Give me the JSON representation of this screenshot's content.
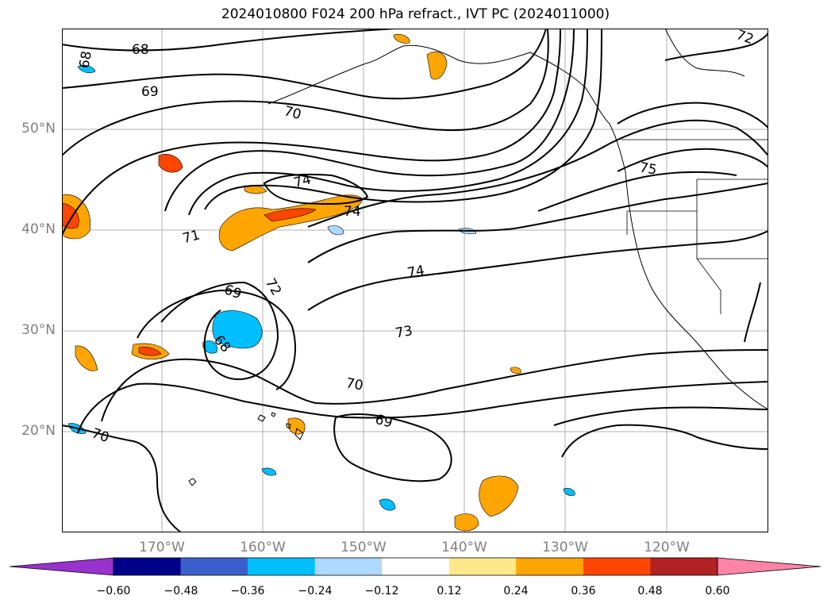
{
  "title": "2024010800 F024 200 hPa refract., IVT PC (2024011000)",
  "lat_labels": [
    "50°N",
    "40°N",
    "30°N",
    "20°N"
  ],
  "lon_labels": [
    "170°W",
    "160°W",
    "150°W",
    "140°W",
    "130°W",
    "120°W"
  ],
  "contour_labels": [
    "68",
    "68",
    "69",
    "70",
    "74",
    "74",
    "71",
    "72",
    "69",
    "68",
    "74",
    "73",
    "70",
    "69",
    "70",
    "75",
    "72"
  ],
  "colorbar": {
    "ticks": [
      "−0.60",
      "−0.48",
      "−0.36",
      "−0.24",
      "−0.12",
      "0.12",
      "0.24",
      "0.36",
      "0.48",
      "0.60"
    ],
    "colors": [
      "#9932cc",
      "#00008b",
      "#3a5fcd",
      "#00bfff",
      "#add8ff",
      "#ffffff",
      "#ffe88a",
      "#ffa500",
      "#ff4500",
      "#b22222",
      "#ff85a8"
    ]
  },
  "colors": {
    "land_line": "#000000",
    "grid": "#b0b0b0",
    "axis_label": "#808080"
  }
}
